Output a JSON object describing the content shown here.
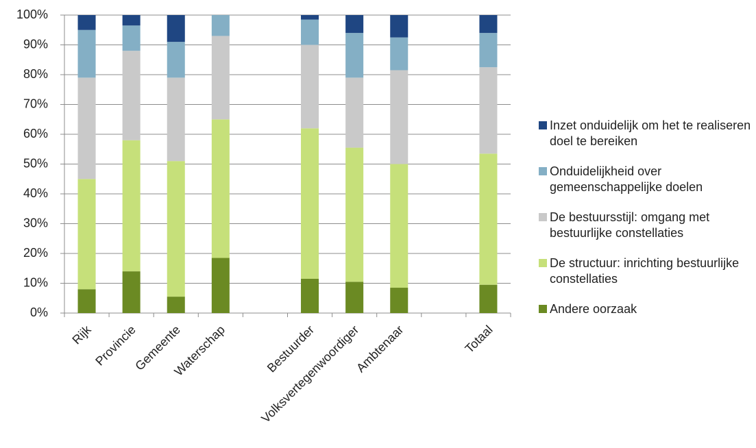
{
  "chart_data": {
    "type": "stacked-bar",
    "categories": [
      "Rijk",
      "Provincie",
      "Gemeente",
      "Waterschap",
      null,
      "Bestuurder",
      "Volksvertegenwoordiger",
      "Ambtenaar",
      null,
      "Totaal"
    ],
    "series": [
      {
        "name": "Andere oorzaak",
        "color": "#6b8a23",
        "values": [
          8,
          14,
          5.5,
          18.5,
          null,
          11.5,
          10.5,
          8.5,
          null,
          9.5
        ]
      },
      {
        "name": "De structuur: inrichting bestuurlijke constellaties",
        "color": "#c6e07a",
        "values": [
          37,
          44,
          45.5,
          46.5,
          null,
          50.5,
          45,
          41.5,
          null,
          44
        ]
      },
      {
        "name": "De bestuursstijl: omgang met bestuurlijke constellaties",
        "color": "#c9c9c9",
        "values": [
          34,
          30,
          28,
          28,
          null,
          28,
          23.5,
          31.5,
          null,
          29
        ]
      },
      {
        "name": "Onduidelijkheid over gemeenschappelijke doelen",
        "color": "#84afc5",
        "values": [
          16,
          8.5,
          12,
          7,
          null,
          8.5,
          15,
          11,
          null,
          11.5
        ]
      },
      {
        "name": "Inzet onduidelijk om het te realiseren doel te bereiken",
        "color": "#1f4682",
        "values": [
          5,
          3.5,
          9,
          0,
          null,
          1.5,
          6,
          7.5,
          null,
          6
        ]
      }
    ],
    "ylim": [
      0,
      100
    ],
    "yticks": [
      {
        "value": 0,
        "label": "0%"
      },
      {
        "value": 10,
        "label": "10%"
      },
      {
        "value": 20,
        "label": "20%"
      },
      {
        "value": 30,
        "label": "30%"
      },
      {
        "value": 40,
        "label": "40%"
      },
      {
        "value": 50,
        "label": "50%"
      },
      {
        "value": 60,
        "label": "60%"
      },
      {
        "value": 70,
        "label": "70%"
      },
      {
        "value": 80,
        "label": "80%"
      },
      {
        "value": 90,
        "label": "90%"
      },
      {
        "value": 100,
        "label": "100%"
      }
    ],
    "grid": true
  }
}
